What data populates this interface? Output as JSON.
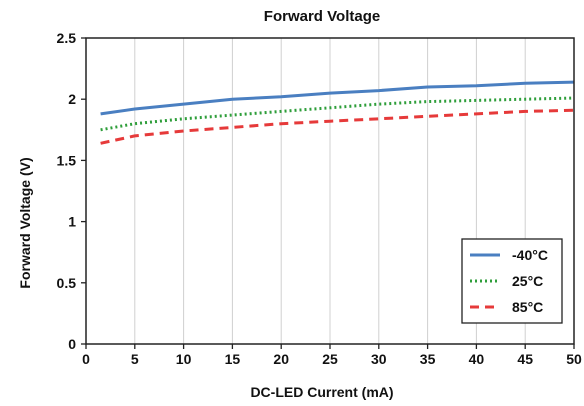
{
  "chart_data": {
    "type": "line",
    "title": "Forward Voltage",
    "xlabel": "DC-LED Current (mA)",
    "ylabel": "Forward Voltage (V)",
    "xlim": [
      0,
      50
    ],
    "ylim": [
      0,
      2.5
    ],
    "xticks": [
      "0",
      "5",
      "10",
      "15",
      "20",
      "25",
      "30",
      "35",
      "40",
      "45",
      "50"
    ],
    "yticks": [
      "0",
      "0.5",
      "1",
      "1.5",
      "2",
      "2.5"
    ],
    "grid": "vertical",
    "legend_position": "bottom-right",
    "x": [
      1.5,
      5,
      10,
      15,
      20,
      25,
      30,
      35,
      40,
      45,
      50
    ],
    "series": [
      {
        "name": "-40°C",
        "style": "solid",
        "color": "#4a7fc1",
        "values": [
          1.88,
          1.92,
          1.96,
          2.0,
          2.02,
          2.05,
          2.07,
          2.1,
          2.11,
          2.13,
          2.14
        ]
      },
      {
        "name": "25°C",
        "style": "dotted",
        "color": "#2e9e3a",
        "values": [
          1.75,
          1.8,
          1.84,
          1.87,
          1.9,
          1.93,
          1.96,
          1.98,
          1.99,
          2.0,
          2.01
        ]
      },
      {
        "name": "85°C",
        "style": "dashed",
        "color": "#e63a3a",
        "values": [
          1.64,
          1.7,
          1.74,
          1.77,
          1.8,
          1.82,
          1.84,
          1.86,
          1.88,
          1.9,
          1.91
        ]
      }
    ]
  }
}
